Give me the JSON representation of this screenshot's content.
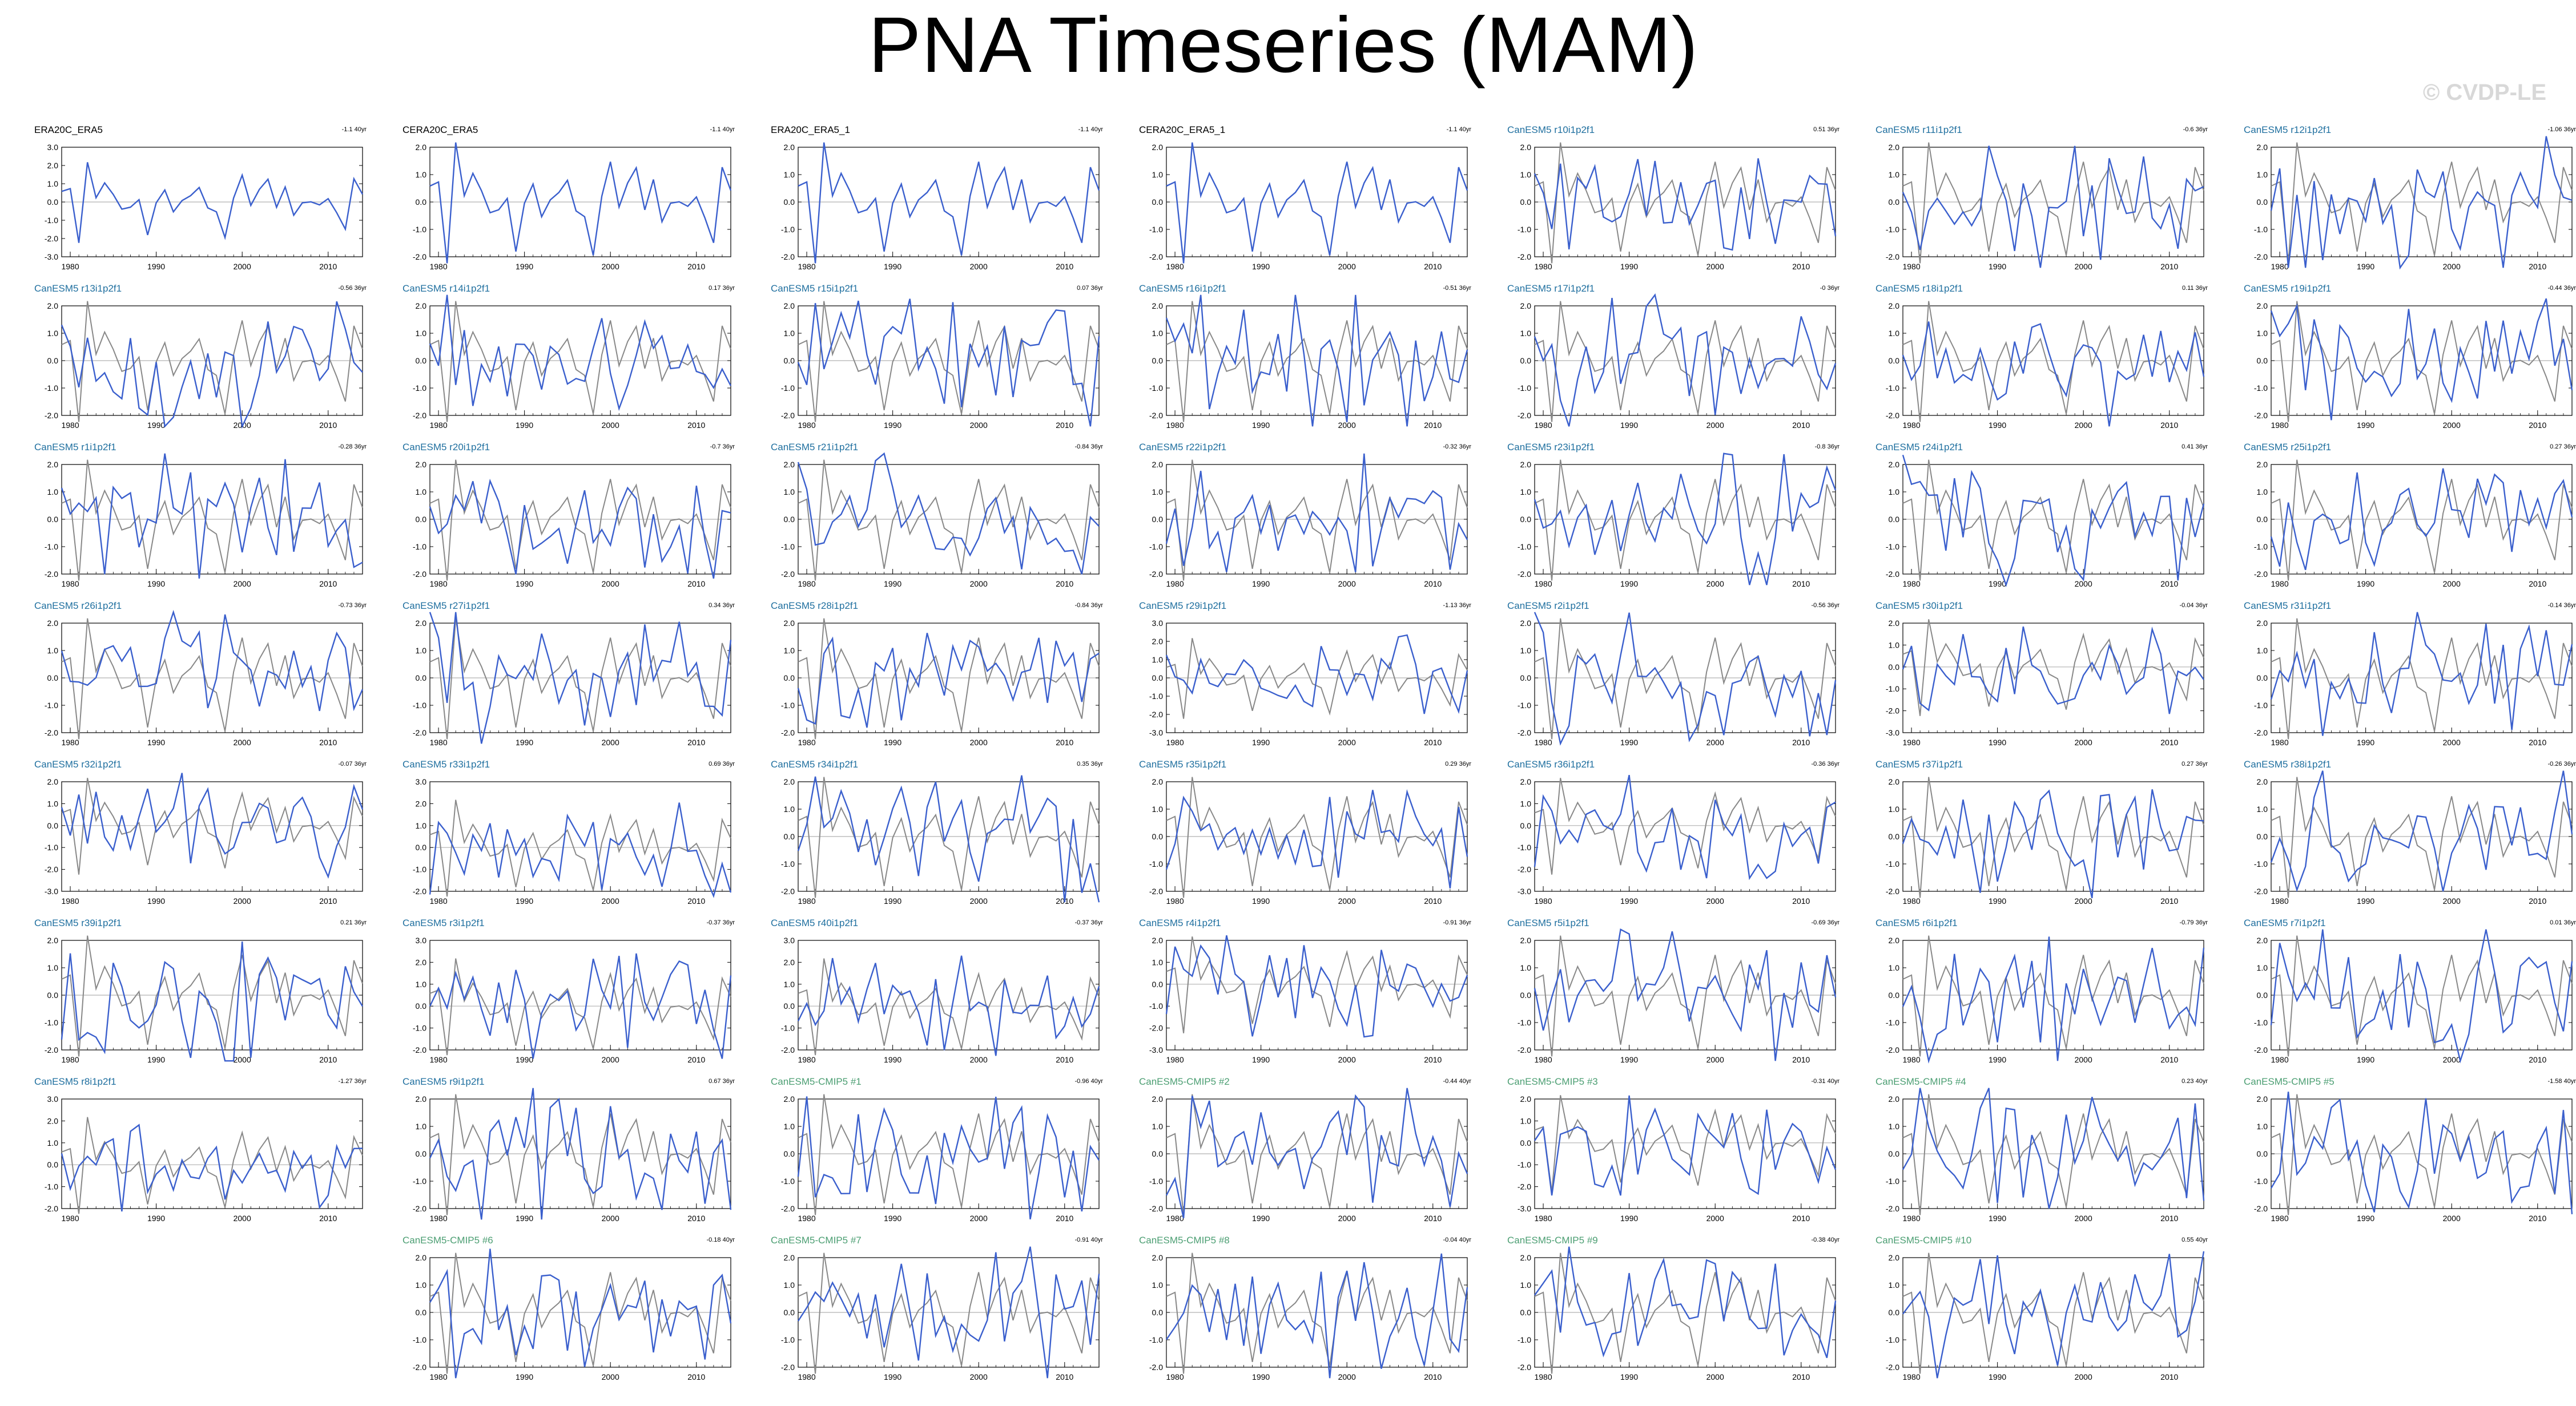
{
  "title": "PNA Timeseries (MAM)",
  "watermark": "© CVDP-LE",
  "colors": {
    "observation": "#888888",
    "model": "#3a5fcd",
    "zero_line": "#b0b0b0",
    "title_obs": "#000000",
    "title_member": "#1f6f9f",
    "title_cmip": "#4b9e72"
  },
  "chart_data": {
    "type": "line",
    "xlim": [
      1979,
      2014
    ],
    "x_ticks": [
      "1980",
      "1990",
      "2000",
      "2010"
    ],
    "panels": [
      {
        "title": "ERA20C_ERA5",
        "trend": "-1.1 40yr",
        "kind": "obs",
        "yticks": [
          "3.0",
          "2.0",
          "1.0",
          "0.0",
          "-1.0",
          "-2.0",
          "-3.0"
        ]
      },
      {
        "title": "CERA20C_ERA5",
        "trend": "-1.1 40yr",
        "kind": "obs",
        "yticks": [
          "2.0",
          "1.0",
          "0.0",
          "-1.0",
          "-2.0"
        ]
      },
      {
        "title": "ERA20C_ERA5_1",
        "trend": "-1.1 40yr",
        "kind": "obs",
        "yticks": [
          "2.0",
          "1.0",
          "0.0",
          "-1.0",
          "-2.0"
        ]
      },
      {
        "title": "CERA20C_ERA5_1",
        "trend": "-1.1 40yr",
        "kind": "obs",
        "yticks": [
          "2.0",
          "1.0",
          "0.0",
          "-1.0",
          "-2.0"
        ]
      },
      {
        "title": "CanESM5 r10i1p2f1",
        "trend": "0.51 36yr",
        "kind": "member",
        "yticks": [
          "2.0",
          "1.0",
          "0.0",
          "-1.0",
          "-2.0"
        ]
      },
      {
        "title": "CanESM5 r11i1p2f1",
        "trend": "-0.6 36yr",
        "kind": "member",
        "yticks": [
          "2.0",
          "1.0",
          "0.0",
          "-1.0",
          "-2.0"
        ]
      },
      {
        "title": "CanESM5 r12i1p2f1",
        "trend": "-1.06 36yr",
        "kind": "member",
        "yticks": [
          "2.0",
          "1.0",
          "0.0",
          "-1.0",
          "-2.0"
        ]
      },
      {
        "title": "CanESM5 r13i1p2f1",
        "trend": "-0.56 36yr",
        "kind": "member",
        "yticks": [
          "2.0",
          "1.0",
          "0.0",
          "-1.0",
          "-2.0"
        ]
      },
      {
        "title": "CanESM5 r14i1p2f1",
        "trend": "0.17 36yr",
        "kind": "member",
        "yticks": [
          "2.0",
          "1.0",
          "0.0",
          "-1.0",
          "-2.0"
        ]
      },
      {
        "title": "CanESM5 r15i1p2f1",
        "trend": "0.07 36yr",
        "kind": "member",
        "yticks": [
          "2.0",
          "1.0",
          "0.0",
          "-1.0",
          "-2.0"
        ]
      },
      {
        "title": "CanESM5 r16i1p2f1",
        "trend": "-0.51 36yr",
        "kind": "member",
        "yticks": [
          "2.0",
          "1.0",
          "0.0",
          "-1.0",
          "-2.0"
        ]
      },
      {
        "title": "CanESM5 r17i1p2f1",
        "trend": "-0 36yr",
        "kind": "member",
        "yticks": [
          "2.0",
          "1.0",
          "0.0",
          "-1.0",
          "-2.0"
        ]
      },
      {
        "title": "CanESM5 r18i1p2f1",
        "trend": "0.11 36yr",
        "kind": "member",
        "yticks": [
          "2.0",
          "1.0",
          "0.0",
          "-1.0",
          "-2.0"
        ]
      },
      {
        "title": "CanESM5 r19i1p2f1",
        "trend": "-0.44 36yr",
        "kind": "member",
        "yticks": [
          "2.0",
          "1.0",
          "0.0",
          "-1.0",
          "-2.0"
        ]
      },
      {
        "title": "CanESM5 r1i1p2f1",
        "trend": "-0.28 36yr",
        "kind": "member",
        "yticks": [
          "2.0",
          "1.0",
          "0.0",
          "-1.0",
          "-2.0"
        ]
      },
      {
        "title": "CanESM5 r20i1p2f1",
        "trend": "-0.7 36yr",
        "kind": "member",
        "yticks": [
          "2.0",
          "1.0",
          "0.0",
          "-1.0",
          "-2.0"
        ]
      },
      {
        "title": "CanESM5 r21i1p2f1",
        "trend": "-0.84 36yr",
        "kind": "member",
        "yticks": [
          "2.0",
          "1.0",
          "0.0",
          "-1.0",
          "-2.0"
        ]
      },
      {
        "title": "CanESM5 r22i1p2f1",
        "trend": "-0.32 36yr",
        "kind": "member",
        "yticks": [
          "2.0",
          "1.0",
          "0.0",
          "-1.0",
          "-2.0"
        ]
      },
      {
        "title": "CanESM5 r23i1p2f1",
        "trend": "-0.8 36yr",
        "kind": "member",
        "yticks": [
          "2.0",
          "1.0",
          "0.0",
          "-1.0",
          "-2.0"
        ]
      },
      {
        "title": "CanESM5 r24i1p2f1",
        "trend": "0.41 36yr",
        "kind": "member",
        "yticks": [
          "2.0",
          "1.0",
          "0.0",
          "-1.0",
          "-2.0"
        ]
      },
      {
        "title": "CanESM5 r25i1p2f1",
        "trend": "0.27 36yr",
        "kind": "member",
        "yticks": [
          "2.0",
          "1.0",
          "0.0",
          "-1.0",
          "-2.0"
        ]
      },
      {
        "title": "CanESM5 r26i1p2f1",
        "trend": "-0.73 36yr",
        "kind": "member",
        "yticks": [
          "2.0",
          "1.0",
          "0.0",
          "-1.0",
          "-2.0"
        ]
      },
      {
        "title": "CanESM5 r27i1p2f1",
        "trend": "0.34 36yr",
        "kind": "member",
        "yticks": [
          "2.0",
          "1.0",
          "0.0",
          "-1.0",
          "-2.0"
        ]
      },
      {
        "title": "CanESM5 r28i1p2f1",
        "trend": "-0.84 36yr",
        "kind": "member",
        "yticks": [
          "2.0",
          "1.0",
          "0.0",
          "-1.0",
          "-2.0"
        ]
      },
      {
        "title": "CanESM5 r29i1p2f1",
        "trend": "-1.13 36yr",
        "kind": "member",
        "yticks": [
          "3.0",
          "2.0",
          "1.0",
          "0.0",
          "-1.0",
          "-2.0",
          "-3.0"
        ]
      },
      {
        "title": "CanESM5 r2i1p2f1",
        "trend": "-0.56 36yr",
        "kind": "member",
        "yticks": [
          "2.0",
          "1.0",
          "0.0",
          "-1.0",
          "-2.0"
        ]
      },
      {
        "title": "CanESM5 r30i1p2f1",
        "trend": "-0.04 36yr",
        "kind": "member",
        "yticks": [
          "2.0",
          "1.0",
          "0.0",
          "-1.0",
          "-2.0",
          "-3.0"
        ]
      },
      {
        "title": "CanESM5 r31i1p2f1",
        "trend": "-0.14 36yr",
        "kind": "member",
        "yticks": [
          "2.0",
          "1.0",
          "0.0",
          "-1.0",
          "-2.0"
        ]
      },
      {
        "title": "CanESM5 r32i1p2f1",
        "trend": "-0.07 36yr",
        "kind": "member",
        "yticks": [
          "2.0",
          "1.0",
          "0.0",
          "-1.0",
          "-2.0",
          "-3.0"
        ]
      },
      {
        "title": "CanESM5 r33i1p2f1",
        "trend": "0.69 36yr",
        "kind": "member",
        "yticks": [
          "3.0",
          "2.0",
          "1.0",
          "0.0",
          "-1.0",
          "-2.0"
        ]
      },
      {
        "title": "CanESM5 r34i1p2f1",
        "trend": "0.35 36yr",
        "kind": "member",
        "yticks": [
          "2.0",
          "1.0",
          "0.0",
          "-1.0",
          "-2.0"
        ]
      },
      {
        "title": "CanESM5 r35i1p2f1",
        "trend": "0.29 36yr",
        "kind": "member",
        "yticks": [
          "2.0",
          "1.0",
          "0.0",
          "-1.0",
          "-2.0"
        ]
      },
      {
        "title": "CanESM5 r36i1p2f1",
        "trend": "-0.36 36yr",
        "kind": "member",
        "yticks": [
          "2.0",
          "1.0",
          "0.0",
          "-1.0",
          "-2.0",
          "-3.0"
        ]
      },
      {
        "title": "CanESM5 r37i1p2f1",
        "trend": "0.27 36yr",
        "kind": "member",
        "yticks": [
          "2.0",
          "1.0",
          "0.0",
          "-1.0",
          "-2.0"
        ]
      },
      {
        "title": "CanESM5 r38i1p2f1",
        "trend": "-0.26 36yr",
        "kind": "member",
        "yticks": [
          "2.0",
          "1.0",
          "0.0",
          "-1.0",
          "-2.0"
        ]
      },
      {
        "title": "CanESM5 r39i1p2f1",
        "trend": "0.21 36yr",
        "kind": "member",
        "yticks": [
          "2.0",
          "1.0",
          "0.0",
          "-1.0",
          "-2.0"
        ]
      },
      {
        "title": "CanESM5 r3i1p2f1",
        "trend": "-0.37 36yr",
        "kind": "member",
        "yticks": [
          "3.0",
          "2.0",
          "1.0",
          "0.0",
          "-1.0",
          "-2.0"
        ]
      },
      {
        "title": "CanESM5 r40i1p2f1",
        "trend": "-0.37 36yr",
        "kind": "member",
        "yticks": [
          "3.0",
          "2.0",
          "1.0",
          "0.0",
          "-1.0",
          "-2.0"
        ]
      },
      {
        "title": "CanESM5 r4i1p2f1",
        "trend": "-0.91 36yr",
        "kind": "member",
        "yticks": [
          "2.0",
          "1.0",
          "0.0",
          "-1.0",
          "-2.0",
          "-3.0"
        ]
      },
      {
        "title": "CanESM5 r5i1p2f1",
        "trend": "-0.69 36yr",
        "kind": "member",
        "yticks": [
          "2.0",
          "1.0",
          "0.0",
          "-1.0",
          "-2.0"
        ]
      },
      {
        "title": "CanESM5 r6i1p2f1",
        "trend": "-0.79 36yr",
        "kind": "member",
        "yticks": [
          "2.0",
          "1.0",
          "0.0",
          "-1.0",
          "-2.0"
        ]
      },
      {
        "title": "CanESM5 r7i1p2f1",
        "trend": "0.01 36yr",
        "kind": "member",
        "yticks": [
          "2.0",
          "1.0",
          "0.0",
          "-1.0",
          "-2.0"
        ]
      },
      {
        "title": "CanESM5 r8i1p2f1",
        "trend": "-1.27 36yr",
        "kind": "member",
        "yticks": [
          "3.0",
          "2.0",
          "1.0",
          "0.0",
          "-1.0",
          "-2.0"
        ]
      },
      {
        "title": "CanESM5 r9i1p2f1",
        "trend": "0.67 36yr",
        "kind": "member",
        "yticks": [
          "2.0",
          "1.0",
          "0.0",
          "-1.0",
          "-2.0"
        ]
      },
      {
        "title": "CanESM5-CMIP5 #1",
        "trend": "-0.96 40yr",
        "kind": "cmip",
        "yticks": [
          "2.0",
          "1.0",
          "0.0",
          "-1.0",
          "-2.0"
        ]
      },
      {
        "title": "CanESM5-CMIP5 #2",
        "trend": "-0.44 40yr",
        "kind": "cmip",
        "yticks": [
          "2.0",
          "1.0",
          "0.0",
          "-1.0",
          "-2.0"
        ]
      },
      {
        "title": "CanESM5-CMIP5 #3",
        "trend": "-0.31 40yr",
        "kind": "cmip",
        "yticks": [
          "2.0",
          "1.0",
          "0.0",
          "-1.0",
          "-2.0",
          "-3.0"
        ]
      },
      {
        "title": "CanESM5-CMIP5 #4",
        "trend": "0.23 40yr",
        "kind": "cmip",
        "yticks": [
          "2.0",
          "1.0",
          "0.0",
          "-1.0",
          "-2.0"
        ]
      },
      {
        "title": "CanESM5-CMIP5 #5",
        "trend": "-1.58 40yr",
        "kind": "cmip",
        "yticks": [
          "2.0",
          "1.0",
          "0.0",
          "-1.0",
          "-2.0"
        ]
      },
      {
        "title": "CanESM5-CMIP5 #6",
        "trend": "-0.18 40yr",
        "kind": "cmip",
        "yticks": [
          "2.0",
          "1.0",
          "0.0",
          "-1.0",
          "-2.0"
        ]
      },
      {
        "title": "CanESM5-CMIP5 #7",
        "trend": "-0.91 40yr",
        "kind": "cmip",
        "yticks": [
          "2.0",
          "1.0",
          "0.0",
          "-1.0",
          "-2.0"
        ]
      },
      {
        "title": "CanESM5-CMIP5 #8",
        "trend": "-0.04 40yr",
        "kind": "cmip",
        "yticks": [
          "2.0",
          "1.0",
          "0.0",
          "-1.0",
          "-2.0"
        ]
      },
      {
        "title": "CanESM5-CMIP5 #9",
        "trend": "-0.38 40yr",
        "kind": "cmip",
        "yticks": [
          "2.0",
          "1.0",
          "0.0",
          "-1.0",
          "-2.0"
        ]
      },
      {
        "title": "CanESM5-CMIP5 #10",
        "trend": "0.55 40yr",
        "kind": "cmip",
        "yticks": [
          "2.0",
          "1.0",
          "0.0",
          "-1.0",
          "-2.0"
        ]
      }
    ]
  }
}
